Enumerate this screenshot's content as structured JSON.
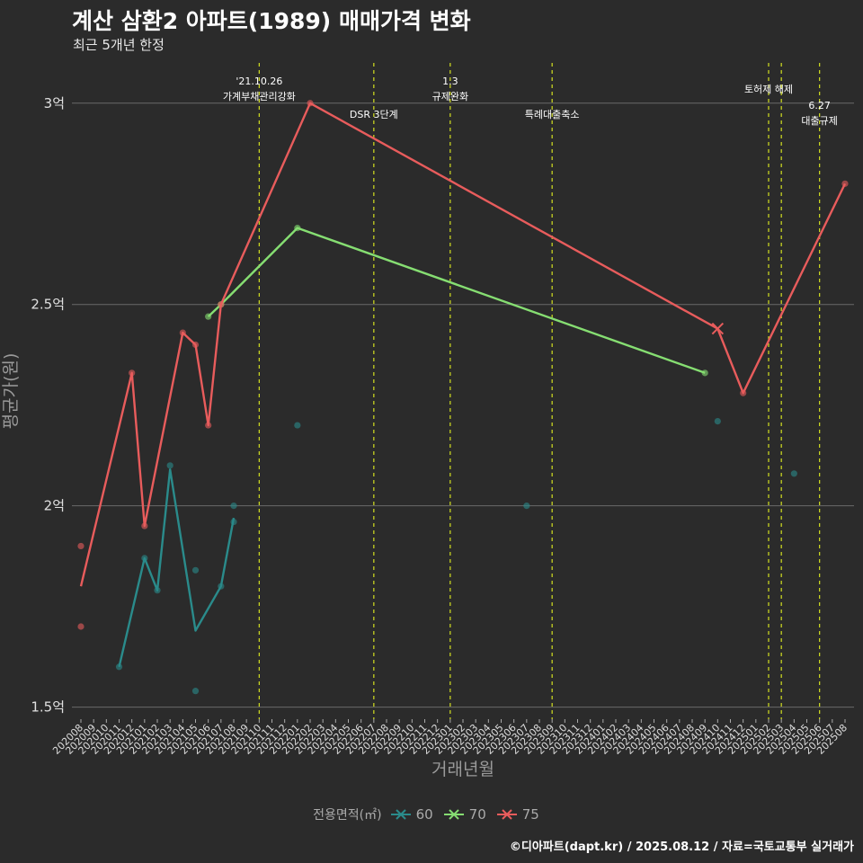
{
  "title": "계산 삼환2 아파트(1989) 매매가격 변화",
  "subtitle": "최근 5개년 한정",
  "caption": "©디아파트(dapt.kr) / 2025.08.12 / 자료=국토교통부 실거래가",
  "colors": {
    "s60": "#2a8b8b",
    "s70": "#86de72",
    "s75": "#e85c5c",
    "vline": "#d4e021",
    "grid": "#6a6a6a",
    "bg": "#2b2b2b"
  },
  "chart_data": {
    "type": "line",
    "xlabel": "거래년월",
    "ylabel": "평균가(원)",
    "ylim": [
      1.47,
      3.1
    ],
    "yticks": [
      {
        "v": 1.5,
        "label": "1.5억"
      },
      {
        "v": 2.0,
        "label": "2억"
      },
      {
        "v": 2.5,
        "label": "2.5억"
      },
      {
        "v": 3.0,
        "label": "3억"
      }
    ],
    "x_categories": [
      "202008",
      "202009",
      "202010",
      "202011",
      "202012",
      "202101",
      "202102",
      "202103",
      "202104",
      "202105",
      "202106",
      "202107",
      "202108",
      "202109",
      "202110",
      "202111",
      "202112",
      "202201",
      "202202",
      "202203",
      "202204",
      "202205",
      "202206",
      "202207",
      "202208",
      "202209",
      "202210",
      "202211",
      "202212",
      "202301",
      "202302",
      "202303",
      "202304",
      "202305",
      "202306",
      "202307",
      "202308",
      "202309",
      "202310",
      "202311",
      "202312",
      "202401",
      "202402",
      "202403",
      "202404",
      "202405",
      "202406",
      "202407",
      "202408",
      "202409",
      "202410",
      "202411",
      "202412",
      "202501",
      "202502",
      "202503",
      "202504",
      "202505",
      "202506",
      "202507",
      "202508"
    ],
    "legend_title": "전용면적(㎡)",
    "series": [
      {
        "name": "60",
        "color_key": "s60",
        "line": [
          [
            "202011",
            1.6
          ],
          [
            "202101",
            1.87
          ],
          [
            "202102",
            1.79
          ],
          [
            "202103",
            2.09
          ],
          [
            "202105",
            1.69
          ],
          [
            "202107",
            1.8
          ],
          [
            "202108",
            1.97
          ]
        ],
        "points": [
          [
            "202011",
            1.6
          ],
          [
            "202101",
            1.87
          ],
          [
            "202102",
            1.79
          ],
          [
            "202103",
            2.1
          ],
          [
            "202105",
            1.84
          ],
          [
            "202105",
            1.54
          ],
          [
            "202107",
            1.8
          ],
          [
            "202108",
            2.0
          ],
          [
            "202108",
            1.96
          ],
          [
            "202201",
            2.2
          ],
          [
            "202307",
            2.0
          ],
          [
            "202410",
            2.21
          ],
          [
            "202504",
            2.08
          ]
        ]
      },
      {
        "name": "70",
        "color_key": "s70",
        "line": [
          [
            "202106",
            2.47
          ],
          [
            "202107",
            2.5
          ],
          [
            "202201",
            2.69
          ],
          [
            "202409",
            2.33
          ]
        ],
        "points": [
          [
            "202106",
            2.47
          ],
          [
            "202107",
            2.5
          ],
          [
            "202201",
            2.69
          ],
          [
            "202409",
            2.33
          ]
        ]
      },
      {
        "name": "75",
        "color_key": "s75",
        "line": [
          [
            "202008",
            1.8
          ],
          [
            "202012",
            2.33
          ],
          [
            "202101",
            1.95
          ],
          [
            "202104",
            2.43
          ],
          [
            "202105",
            2.4
          ],
          [
            "202106",
            2.2
          ],
          [
            "202107",
            2.5
          ],
          [
            "202202",
            3.0
          ],
          [
            "202410",
            2.44
          ],
          [
            "202412",
            2.28
          ],
          [
            "202508",
            2.8
          ]
        ],
        "points": [
          [
            "202008",
            1.9
          ],
          [
            "202008",
            1.7
          ],
          [
            "202012",
            2.33
          ],
          [
            "202101",
            1.95
          ],
          [
            "202104",
            2.43
          ],
          [
            "202105",
            2.4
          ],
          [
            "202106",
            2.2
          ],
          [
            "202107",
            2.5
          ],
          [
            "202202",
            3.0
          ],
          [
            "202412",
            2.28
          ],
          [
            "202508",
            2.8
          ]
        ],
        "cross": [
          [
            "202410",
            2.44
          ]
        ]
      }
    ],
    "events": [
      {
        "x": "202110",
        "lines": [
          "'21.10.26",
          "가계부채관리강화"
        ],
        "level": 0
      },
      {
        "x": "202207",
        "lines": [
          "DSR 3단계"
        ],
        "level": 1
      },
      {
        "x": "202301",
        "lines": [
          "1.3",
          "규제완화"
        ],
        "level": 0
      },
      {
        "x": "202309",
        "lines": [
          "특례대출축소"
        ],
        "level": 1
      },
      {
        "x": "202502",
        "lines": [
          "토허제 해제"
        ],
        "level": 2
      },
      {
        "x": "202503",
        "lines": [],
        "level": 2
      },
      {
        "x": "202506",
        "lines": [
          "6.27",
          "대출규제"
        ],
        "level": 3
      }
    ]
  }
}
